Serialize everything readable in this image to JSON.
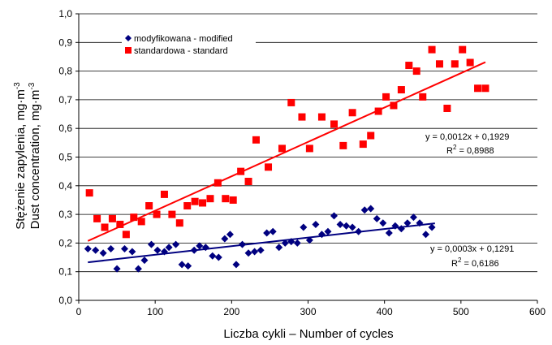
{
  "chart_data": {
    "type": "scatter",
    "xlabel": "Liczba cykli – Number of cycles",
    "ylabel_line1": "Stężenie zapylenia, mg·m",
    "ylabel_line2": "Dust concentration, mg·m",
    "ylabel_exp": "-3",
    "xlim": [
      0,
      600
    ],
    "ylim": [
      0,
      1.0
    ],
    "xticks": [
      0,
      100,
      200,
      300,
      400,
      500,
      600
    ],
    "yticks": [
      0,
      0.1,
      0.2,
      0.3,
      0.4,
      0.5,
      0.6,
      0.7,
      0.8,
      0.9,
      1.0
    ],
    "xtick_labels": [
      "0",
      "100",
      "200",
      "300",
      "400",
      "500",
      "600"
    ],
    "ytick_labels": [
      "0,0",
      "0,1",
      "0,2",
      "0,3",
      "0,4",
      "0,5",
      "0,6",
      "0,7",
      "0,8",
      "0,9",
      "1,0"
    ],
    "grid": "horizontal",
    "legend_position": "top-left",
    "series": [
      {
        "name": "modyfikowana - modified",
        "marker": "diamond",
        "color": "#000080",
        "x": [
          12,
          22,
          32,
          42,
          50,
          60,
          70,
          78,
          86,
          95,
          103,
          112,
          118,
          127,
          135,
          143,
          151,
          158,
          166,
          175,
          183,
          191,
          198,
          206,
          214,
          222,
          230,
          238,
          246,
          254,
          262,
          270,
          278,
          286,
          294,
          302,
          310,
          318,
          326,
          334,
          342,
          350,
          358,
          366,
          374,
          382,
          390,
          398,
          406,
          414,
          422,
          430,
          438,
          446,
          454,
          462
        ],
        "y": [
          0.18,
          0.175,
          0.165,
          0.18,
          0.11,
          0.18,
          0.17,
          0.11,
          0.14,
          0.195,
          0.175,
          0.17,
          0.185,
          0.195,
          0.125,
          0.12,
          0.175,
          0.19,
          0.185,
          0.155,
          0.15,
          0.215,
          0.23,
          0.125,
          0.195,
          0.165,
          0.17,
          0.175,
          0.235,
          0.24,
          0.185,
          0.2,
          0.205,
          0.2,
          0.255,
          0.21,
          0.265,
          0.23,
          0.24,
          0.295,
          0.265,
          0.26,
          0.255,
          0.24,
          0.315,
          0.32,
          0.285,
          0.27,
          0.235,
          0.26,
          0.25,
          0.27,
          0.29,
          0.27,
          0.23,
          0.255
        ]
      },
      {
        "name": "standardowa - standard",
        "marker": "square",
        "color": "#ff0000",
        "x": [
          14,
          24,
          34,
          44,
          54,
          62,
          72,
          82,
          92,
          102,
          112,
          122,
          132,
          142,
          152,
          162,
          172,
          182,
          192,
          202,
          212,
          222,
          232,
          248,
          266,
          278,
          292,
          302,
          318,
          334,
          346,
          358,
          372,
          382,
          392,
          402,
          412,
          422,
          432,
          442,
          450,
          462,
          472,
          482,
          492,
          502,
          512,
          522,
          532
        ],
        "y": [
          0.375,
          0.285,
          0.255,
          0.285,
          0.265,
          0.23,
          0.29,
          0.275,
          0.33,
          0.3,
          0.37,
          0.3,
          0.27,
          0.33,
          0.345,
          0.34,
          0.355,
          0.41,
          0.355,
          0.35,
          0.45,
          0.415,
          0.56,
          0.465,
          0.53,
          0.69,
          0.64,
          0.53,
          0.64,
          0.615,
          0.54,
          0.655,
          0.545,
          0.575,
          0.66,
          0.71,
          0.68,
          0.735,
          0.82,
          0.8,
          0.71,
          0.875,
          0.825,
          0.67,
          0.825,
          0.875,
          0.83,
          0.74,
          0.74
        ]
      }
    ],
    "trendlines": [
      {
        "series": "modyfikowana - modified",
        "slope": 0.0003,
        "intercept": 0.1291,
        "x_range": [
          12,
          466
        ],
        "color": "#000080",
        "equation": "y = 0,0003x + 0,1291",
        "r2_prefix": "R",
        "r2_exp": "2",
        "r2_value": " = 0,6186"
      },
      {
        "series": "standardowa - standard",
        "slope": 0.0012,
        "intercept": 0.1929,
        "x_range": [
          12,
          532
        ],
        "color": "#ff0000",
        "equation": "y = 0,0012x + 0,1929",
        "r2_prefix": "R",
        "r2_exp": "2",
        "r2_value": " = 0,8988"
      }
    ]
  }
}
